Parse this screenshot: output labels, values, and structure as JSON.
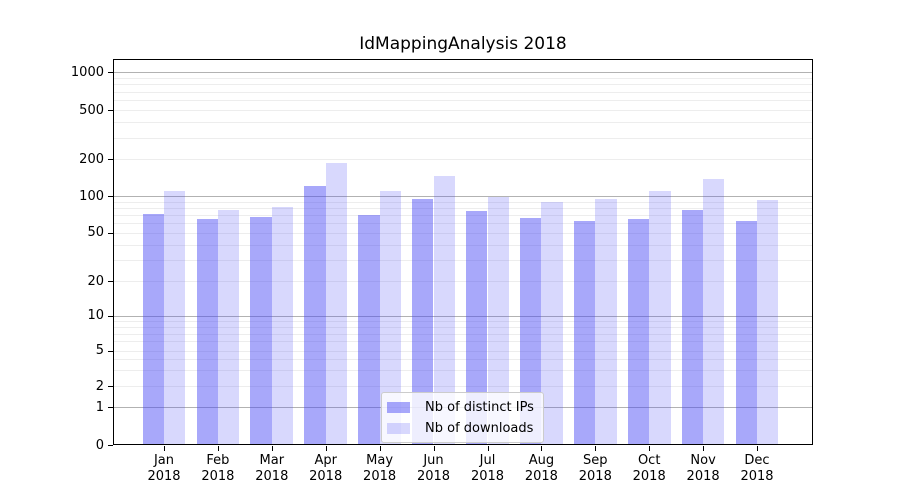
{
  "chart_data": {
    "type": "bar",
    "title": "IdMappingAnalysis 2018",
    "categories": [
      "Jan 2018",
      "Feb 2018",
      "Mar 2018",
      "Apr 2018",
      "May 2018",
      "Jun 2018",
      "Jul 2018",
      "Aug 2018",
      "Sep 2018",
      "Oct 2018",
      "Nov 2018",
      "Dec 2018"
    ],
    "series": [
      {
        "name": "Nb of distinct IPs",
        "color": "#a8a8f8",
        "fill": "rgba(70,70,245,0.47)",
        "values": [
          71,
          65,
          67,
          122,
          70,
          95,
          75,
          66,
          62,
          65,
          77,
          62
        ]
      },
      {
        "name": "Nb of downloads",
        "color": "#d8d8fa",
        "fill": "rgba(70,70,245,0.21)",
        "values": [
          110,
          77,
          81,
          185,
          110,
          146,
          99,
          90,
          95,
          110,
          138,
          92
        ]
      }
    ],
    "y_axis": {
      "scale": "symlog",
      "tick_labels": [
        "0",
        "1",
        "2",
        "5",
        "10",
        "20",
        "50",
        "100",
        "200",
        "500",
        "1000"
      ],
      "ticks": [
        0,
        1,
        2,
        5,
        10,
        20,
        50,
        100,
        200,
        500,
        1000
      ]
    },
    "legend": {
      "position": "lower center"
    },
    "grid": "horizontal major + log minors",
    "text_color": "#000000",
    "gridline_minor_color": "#ededed",
    "gridline_major_color": "#b2b2b2"
  }
}
